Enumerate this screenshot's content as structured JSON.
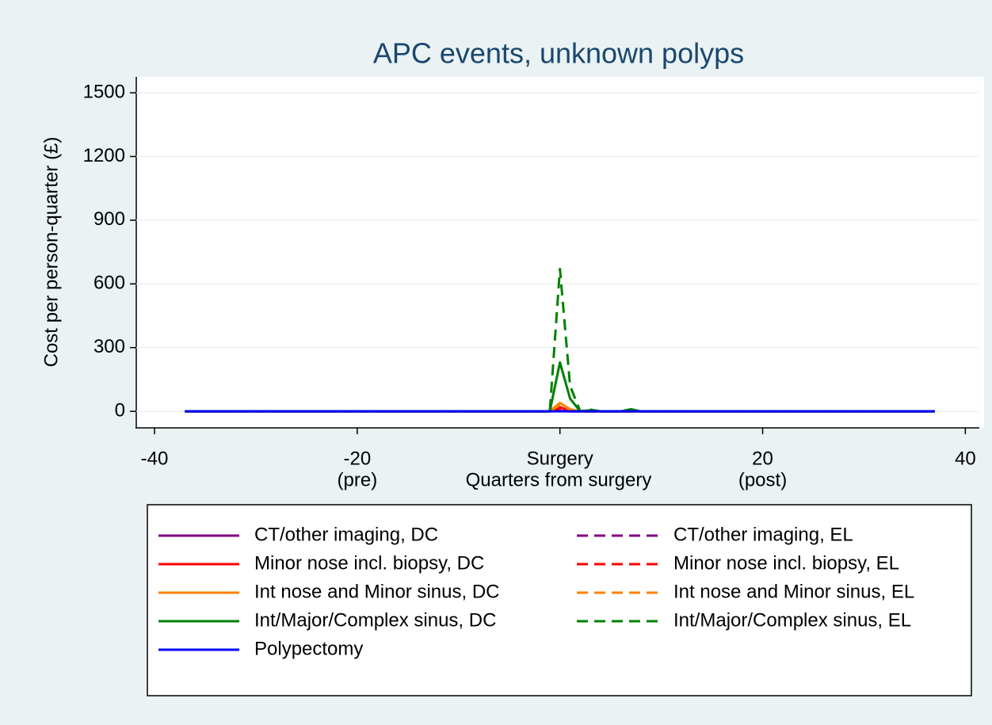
{
  "chart_data": {
    "type": "line",
    "title": "APC events, unknown polyps",
    "x_label": "Quarters from surgery",
    "y_label": "Cost per person-quarter (£)",
    "x": [
      -37,
      -2,
      -1,
      0,
      1,
      2,
      3,
      4,
      5,
      6,
      7,
      8,
      9,
      37
    ],
    "series": [
      {
        "name": "CT/other imaging, DC",
        "color": "#800080",
        "dash": false,
        "values": [
          0,
          0,
          0,
          2,
          0,
          0,
          0,
          0,
          0,
          0,
          0,
          0,
          0,
          0
        ]
      },
      {
        "name": "CT/other imaging, EL",
        "color": "#800080",
        "dash": true,
        "values": [
          0,
          0,
          0,
          2,
          0,
          0,
          0,
          0,
          0,
          0,
          0,
          0,
          0,
          0
        ]
      },
      {
        "name": "Minor nose incl. biopsy, DC",
        "color": "#ff0000",
        "dash": false,
        "values": [
          0,
          0,
          0,
          20,
          2,
          0,
          0,
          0,
          0,
          0,
          0,
          0,
          0,
          0
        ]
      },
      {
        "name": "Minor nose incl. biopsy, EL",
        "color": "#ff0000",
        "dash": true,
        "values": [
          0,
          0,
          0,
          15,
          2,
          0,
          0,
          0,
          0,
          0,
          0,
          0,
          0,
          0
        ]
      },
      {
        "name": "Int nose and Minor sinus, DC",
        "color": "#ff8000",
        "dash": false,
        "values": [
          0,
          0,
          0,
          40,
          10,
          0,
          0,
          0,
          0,
          0,
          0,
          0,
          0,
          0
        ]
      },
      {
        "name": "Int nose and Minor sinus, EL",
        "color": "#ff8000",
        "dash": true,
        "values": [
          0,
          0,
          0,
          30,
          8,
          0,
          0,
          0,
          0,
          0,
          0,
          0,
          0,
          0
        ]
      },
      {
        "name": "Int/Major/Complex sinus, DC",
        "color": "#008000",
        "dash": false,
        "values": [
          0,
          0,
          0,
          230,
          60,
          0,
          5,
          0,
          0,
          0,
          8,
          0,
          0,
          0
        ]
      },
      {
        "name": "Int/Major/Complex sinus, EL",
        "color": "#008000",
        "dash": true,
        "values": [
          0,
          0,
          0,
          670,
          120,
          0,
          8,
          0,
          0,
          0,
          10,
          0,
          0,
          0
        ]
      },
      {
        "name": "Polypectomy",
        "color": "#0000ff",
        "dash": false,
        "values": [
          0,
          0,
          0,
          0,
          0,
          0,
          0,
          0,
          0,
          0,
          0,
          0,
          0,
          0
        ]
      }
    ],
    "xlim": [
      -41.8,
      41.3
    ],
    "ylim": [
      -78,
      1575
    ],
    "xticks": [
      -40,
      {
        "value": -20,
        "label": "-20",
        "sub": "(pre)"
      },
      {
        "value": 0,
        "label": "Surgery"
      },
      {
        "value": 20,
        "label": "20",
        "sub": "(post)"
      },
      40
    ],
    "yticks": [
      0,
      300,
      600,
      900,
      1200,
      1500
    ],
    "grid": true
  }
}
